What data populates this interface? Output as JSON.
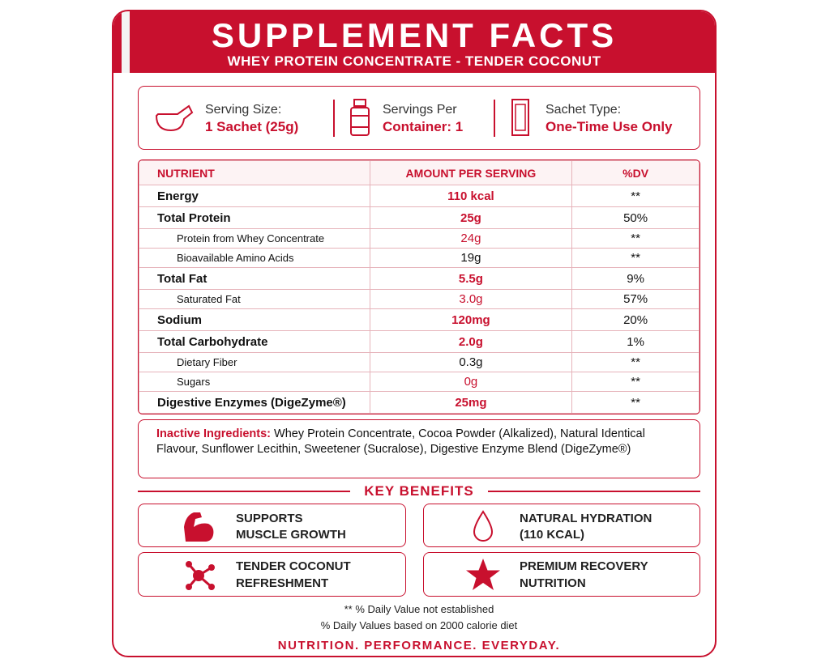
{
  "header": {
    "title": "SUPPLEMENT FACTS",
    "subtitle": "WHEY PROTEIN CONCENTRATE - TENDER COCONUT"
  },
  "serving": [
    {
      "label": "Serving Size:",
      "value": "1 Sachet (25g)"
    },
    {
      "label": "Servings Per",
      "value": "Container: 1"
    },
    {
      "label": "Sachet Type:",
      "value": "One-Time Use Only"
    }
  ],
  "table": {
    "columns": [
      "NUTRIENT",
      "AMOUNT PER SERVING",
      "%DV"
    ],
    "rows": [
      {
        "nutrient": "Energy",
        "amount": "110 kcal",
        "dv": "**",
        "sub": false,
        "amount_color": "#c8102e"
      },
      {
        "nutrient": "Total Protein",
        "amount": "25g",
        "dv": "50%",
        "sub": false,
        "amount_color": "#c8102e"
      },
      {
        "nutrient": "Protein from Whey Concentrate",
        "amount": "24g",
        "dv": "**",
        "sub": true,
        "amount_color": "#c8102e"
      },
      {
        "nutrient": "Bioavailable Amino Acids",
        "amount": "19g",
        "dv": "**",
        "sub": true,
        "amount_color": "#111111"
      },
      {
        "nutrient": "Total Fat",
        "amount": "5.5g",
        "dv": "9%",
        "sub": false,
        "amount_color": "#c8102e"
      },
      {
        "nutrient": "Saturated Fat",
        "amount": "3.0g",
        "dv": "57%",
        "sub": true,
        "amount_color": "#c8102e"
      },
      {
        "nutrient": "Sodium",
        "amount": "120mg",
        "dv": "20%",
        "sub": false,
        "amount_color": "#c8102e"
      },
      {
        "nutrient": "Total Carbohydrate",
        "amount": "2.0g",
        "dv": "1%",
        "sub": false,
        "amount_color": "#c8102e"
      },
      {
        "nutrient": "Dietary Fiber",
        "amount": "0.3g",
        "dv": "**",
        "sub": true,
        "amount_color": "#111111"
      },
      {
        "nutrient": "Sugars",
        "amount": "0g",
        "dv": "**",
        "sub": true,
        "amount_color": "#c8102e"
      },
      {
        "nutrient": "Digestive Enzymes (DigeZyme®)",
        "amount": "25mg",
        "dv": "**",
        "sub": false,
        "amount_color": "#c8102e"
      }
    ]
  },
  "inactive": {
    "label": "Inactive Ingredients:",
    "text": "Whey Protein Concentrate, Cocoa Powder (Alkalized), Natural Identical Flavour, Sunflower Lecithin, Sweetener (Sucralose), Digestive Enzyme Blend (DigeZyme®)"
  },
  "benefits": {
    "title": "KEY BENEFITS",
    "items": [
      [
        "SUPPORTS",
        "MUSCLE GROWTH"
      ],
      [
        "NATURAL HYDRATION",
        "(110 KCAL)"
      ],
      [
        "TENDER COCONUT",
        "REFRESHMENT"
      ],
      [
        "PREMIUM RECOVERY",
        "NUTRITION"
      ]
    ]
  },
  "footnotes": [
    "** % Daily Value not established",
    "% Daily Values based on 2000 calorie diet"
  ],
  "tagline": "NUTRITION. PERFORMANCE. EVERYDAY."
}
